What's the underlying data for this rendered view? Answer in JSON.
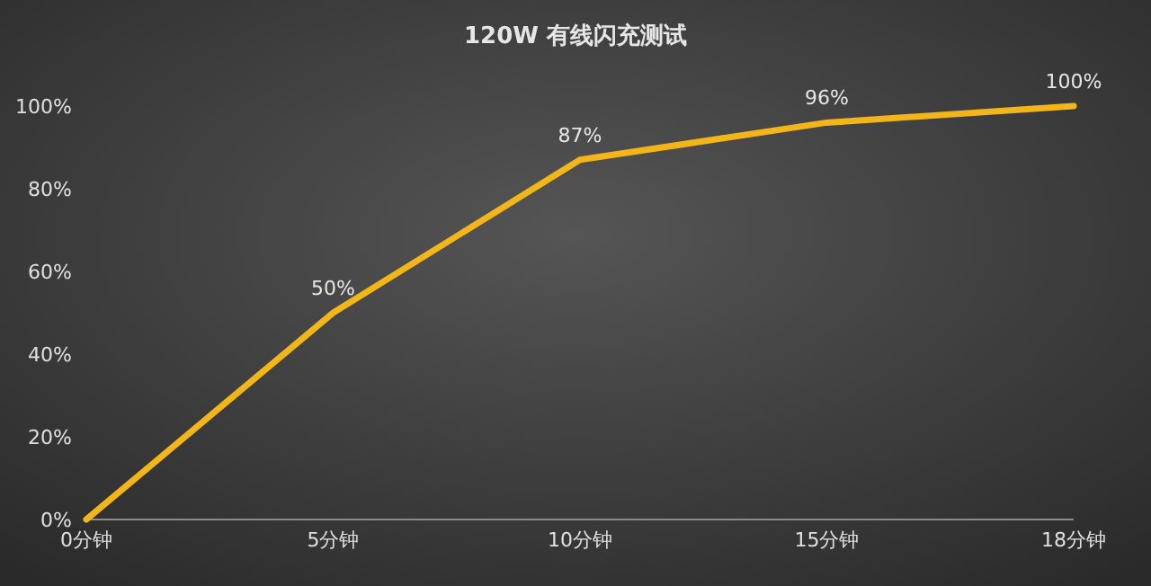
{
  "chart_data": {
    "type": "line",
    "title": "120W 有线闪充测试",
    "categories": [
      "0分钟",
      "5分钟",
      "10分钟",
      "15分钟",
      "18分钟"
    ],
    "series": [
      {
        "color": "#f2b619",
        "values": [
          0,
          50,
          87,
          96,
          100
        ],
        "value_labels": [
          null,
          "50%",
          "87%",
          "96%",
          "100%"
        ]
      }
    ],
    "ylim": [
      0,
      100
    ],
    "yticks": [
      {
        "value": 0,
        "label": "0%"
      },
      {
        "value": 20,
        "label": "20%"
      },
      {
        "value": 40,
        "label": "40%"
      },
      {
        "value": 60,
        "label": "60%"
      },
      {
        "value": 80,
        "label": "80%"
      },
      {
        "value": 100,
        "label": "100%"
      }
    ],
    "grid": false,
    "marker": "none",
    "line_style": "solid"
  }
}
